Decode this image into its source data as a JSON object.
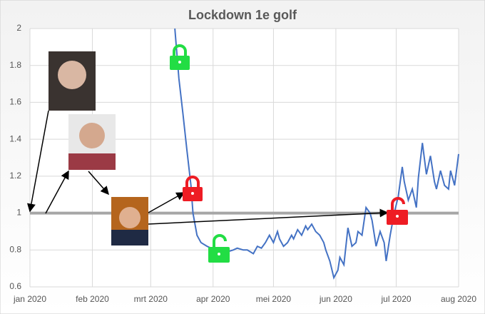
{
  "chart_data": {
    "type": "line",
    "title": "Lockdown 1e golf",
    "x": [
      72,
      74,
      76,
      78,
      80,
      81,
      83,
      85,
      88,
      90,
      93,
      96,
      98,
      101,
      103,
      106,
      108,
      111,
      113,
      115,
      117,
      119,
      121,
      123,
      124,
      126,
      128,
      130,
      131,
      133,
      135,
      137,
      138,
      140,
      142,
      144,
      146,
      147,
      149,
      151,
      153,
      154,
      156,
      158,
      160,
      162,
      163,
      165,
      167,
      169,
      170,
      172,
      174,
      176,
      177,
      179,
      181,
      183,
      185,
      186,
      188,
      190,
      192,
      193,
      195,
      197,
      199,
      201,
      202,
      204,
      206,
      208,
      209,
      211,
      213
    ],
    "series": [
      {
        "color": "#4472c4",
        "values": [
          2.0,
          1.73,
          1.54,
          1.34,
          1.15,
          1.0,
          0.88,
          0.84,
          0.82,
          0.81,
          0.8,
          0.8,
          0.79,
          0.8,
          0.81,
          0.8,
          0.8,
          0.78,
          0.82,
          0.81,
          0.84,
          0.88,
          0.84,
          0.9,
          0.86,
          0.82,
          0.84,
          0.88,
          0.86,
          0.91,
          0.88,
          0.93,
          0.91,
          0.94,
          0.9,
          0.88,
          0.84,
          0.8,
          0.74,
          0.65,
          0.69,
          0.76,
          0.72,
          0.92,
          0.82,
          0.84,
          0.9,
          0.88,
          1.03,
          1.0,
          0.96,
          0.82,
          0.9,
          0.84,
          0.74,
          0.88,
          1.0,
          1.09,
          1.25,
          1.17,
          1.07,
          1.13,
          1.03,
          1.19,
          1.38,
          1.21,
          1.31,
          1.17,
          1.13,
          1.23,
          1.15,
          1.13,
          1.23,
          1.15,
          1.32
        ]
      }
    ],
    "xlim": [
      0,
      213
    ],
    "xticks": [
      {
        "value": 0,
        "label": "jan 2020"
      },
      {
        "value": 31,
        "label": "feb 2020"
      },
      {
        "value": 60,
        "label": "mrt 2020"
      },
      {
        "value": 91,
        "label": "apr 2020"
      },
      {
        "value": 121,
        "label": "mei 2020"
      },
      {
        "value": 152,
        "label": "jun 2020"
      },
      {
        "value": 182,
        "label": "jul 2020"
      },
      {
        "value": 213,
        "label": "aug 2020"
      }
    ],
    "ylim": [
      0.6,
      2
    ],
    "yticks": [
      0.6,
      0.8,
      1,
      1.2,
      1.4,
      1.6,
      1.8,
      2
    ],
    "reference_line": 1,
    "grid": true
  }
}
